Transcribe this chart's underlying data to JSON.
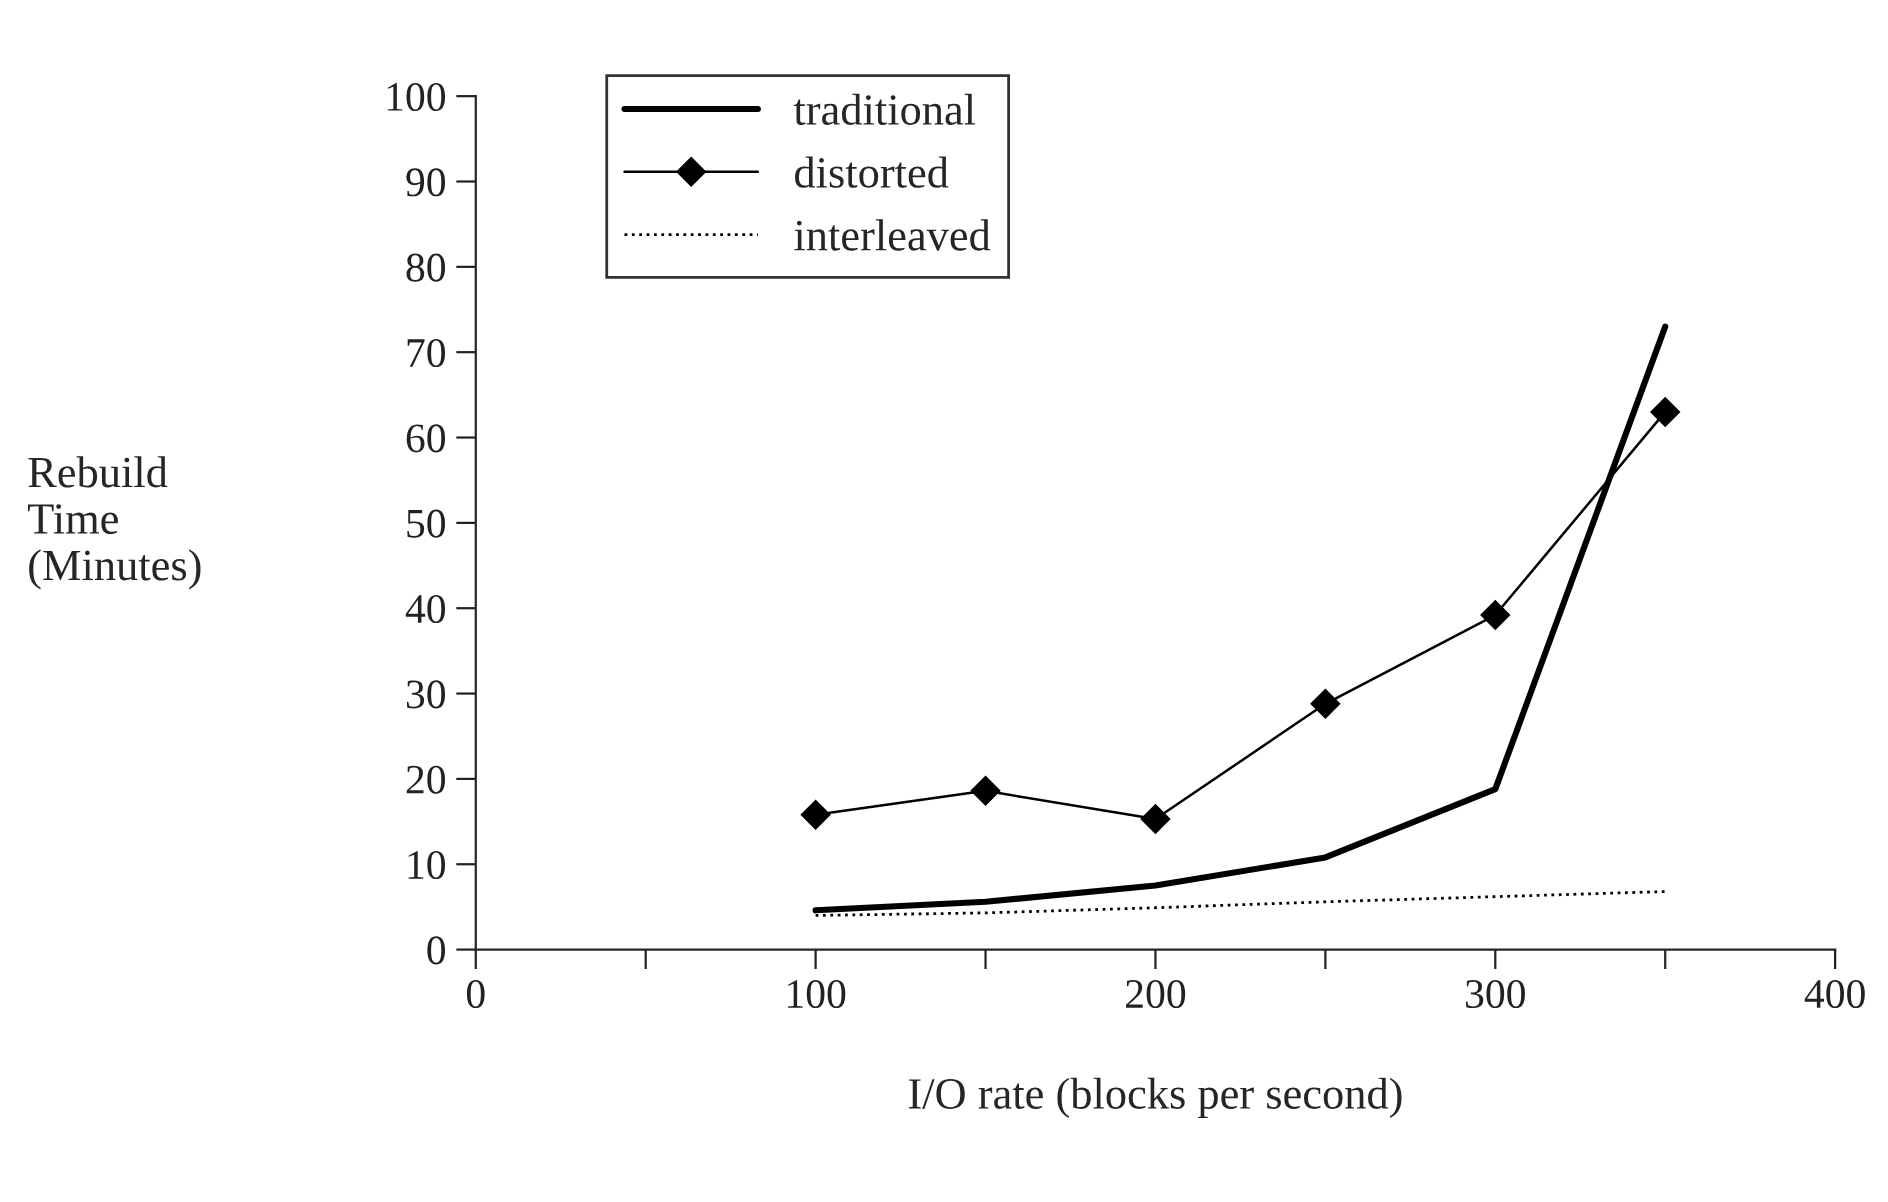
{
  "chart_data": {
    "type": "line",
    "xlabel": "I/O rate (blocks per second)",
    "ylabel": "Rebuild\nTime\n(Minutes)",
    "x": [
      100,
      150,
      200,
      250,
      300,
      350
    ],
    "series": [
      {
        "name": "traditional",
        "color": "#000000",
        "values": [
          4.6,
          5.6,
          7.5,
          10.8,
          18.8,
          73
        ],
        "line_style": "solid",
        "marker": "none"
      },
      {
        "name": "distorted",
        "color": "#000000",
        "values": [
          15.8,
          18.6,
          15.3,
          28.8,
          39.2,
          63
        ],
        "line_style": "solid",
        "marker": "diamond"
      },
      {
        "name": "interleaved",
        "color": "#000000",
        "values": [
          4,
          4.3,
          4.9,
          5.6,
          6.2,
          6.8
        ],
        "line_style": "dotted",
        "marker": "none"
      }
    ],
    "xlim": [
      0,
      400
    ],
    "xticks": [
      0,
      {
        "value": 50,
        "label": null
      },
      100,
      {
        "value": 150,
        "label": null
      },
      200,
      {
        "value": 250,
        "label": null
      },
      300,
      {
        "value": 350,
        "label": null
      },
      400
    ],
    "ylim": [
      0,
      100
    ],
    "yticks": [
      0,
      10,
      20,
      30,
      40,
      50,
      60,
      70,
      80,
      90,
      100
    ],
    "grid": false,
    "legend": "top left"
  }
}
